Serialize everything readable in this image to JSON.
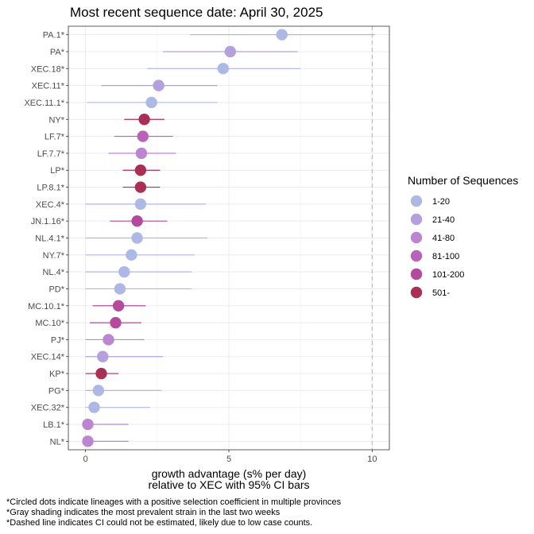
{
  "chart_data": {
    "type": "scatter",
    "title": "Most recent sequence date: April 30, 2025",
    "xlabel_line1": "growth advantage (s% per day)",
    "xlabel_line2": "relative to  XEC  with 95% CI bars",
    "xlim": [
      -0.6,
      10.6
    ],
    "xticks": [
      0,
      5,
      10
    ],
    "grid": true,
    "dashed_reference_x": 10,
    "legend": {
      "title": "Number of Sequences",
      "placement": "right",
      "entries": [
        {
          "label": "1-20",
          "color": "#AEB8E4"
        },
        {
          "label": "21-40",
          "color": "#B3A0DC"
        },
        {
          "label": "41-80",
          "color": "#BB85D2"
        },
        {
          "label": "81-100",
          "color": "#B862B8"
        },
        {
          "label": "101-200",
          "color": "#B34A9B"
        },
        {
          "label": "501-",
          "color": "#AA2F55"
        }
      ]
    },
    "points": [
      {
        "lineage": "PA.1*",
        "estimate": 6.85,
        "lower": 3.65,
        "upper": 10.1,
        "bin": 0
      },
      {
        "lineage": "PA*",
        "estimate": 5.05,
        "lower": 2.7,
        "upper": 7.4,
        "bin": 1
      },
      {
        "lineage": "XEC.18*",
        "estimate": 4.8,
        "lower": 2.15,
        "upper": 7.5,
        "bin": 0
      },
      {
        "lineage": "XEC.11*",
        "estimate": 2.55,
        "lower": 0.55,
        "upper": 4.6,
        "bin": 1
      },
      {
        "lineage": "XEC.11.1*",
        "estimate": 2.3,
        "lower": 0.05,
        "upper": 4.6,
        "bin": 0
      },
      {
        "lineage": "NY*",
        "estimate": 2.05,
        "lower": 1.35,
        "upper": 2.75,
        "bin": 5
      },
      {
        "lineage": "LF.7*",
        "estimate": 2.0,
        "lower": 1.0,
        "upper": 3.05,
        "bin": 3
      },
      {
        "lineage": "LF.7.7*",
        "estimate": 1.95,
        "lower": 0.8,
        "upper": 3.15,
        "bin": 2
      },
      {
        "lineage": "LP*",
        "estimate": 1.92,
        "lower": 1.3,
        "upper": 2.6,
        "bin": 5
      },
      {
        "lineage": "LP.8.1*",
        "estimate": 1.92,
        "lower": 1.3,
        "upper": 2.6,
        "bin": 5
      },
      {
        "lineage": "XEC.4*",
        "estimate": 1.92,
        "lower": 0.0,
        "upper": 4.2,
        "bin": 0
      },
      {
        "lineage": "JN.1.16*",
        "estimate": 1.8,
        "lower": 0.85,
        "upper": 2.85,
        "bin": 4
      },
      {
        "lineage": "NL.4.1*",
        "estimate": 1.8,
        "lower": 0.0,
        "upper": 4.25,
        "bin": 0
      },
      {
        "lineage": "NY.7*",
        "estimate": 1.6,
        "lower": 0.0,
        "upper": 3.8,
        "bin": 0
      },
      {
        "lineage": "NL.4*",
        "estimate": 1.35,
        "lower": 0.0,
        "upper": 3.7,
        "bin": 0
      },
      {
        "lineage": "PD*",
        "estimate": 1.2,
        "lower": 0.0,
        "upper": 3.7,
        "bin": 0
      },
      {
        "lineage": "MC.10.1*",
        "estimate": 1.15,
        "lower": 0.25,
        "upper": 2.1,
        "bin": 4
      },
      {
        "lineage": "MC.10*",
        "estimate": 1.05,
        "lower": 0.15,
        "upper": 1.95,
        "bin": 4
      },
      {
        "lineage": "PJ*",
        "estimate": 0.8,
        "lower": 0.0,
        "upper": 2.05,
        "bin": 2
      },
      {
        "lineage": "XEC.14*",
        "estimate": 0.6,
        "lower": 0.0,
        "upper": 2.7,
        "bin": 1
      },
      {
        "lineage": "KP*",
        "estimate": 0.55,
        "lower": 0.0,
        "upper": 1.15,
        "bin": 5
      },
      {
        "lineage": "PG*",
        "estimate": 0.45,
        "lower": 0.0,
        "upper": 2.65,
        "bin": 0
      },
      {
        "lineage": "XEC.32*",
        "estimate": 0.3,
        "lower": 0.0,
        "upper": 2.25,
        "bin": 0
      },
      {
        "lineage": "LB.1*",
        "estimate": 0.08,
        "lower": 0.0,
        "upper": 1.5,
        "bin": 2
      },
      {
        "lineage": "NL*",
        "estimate": 0.08,
        "lower": 0.0,
        "upper": 1.5,
        "bin": 2
      }
    ]
  },
  "notes": [
    "*Circled dots indicate lineages with a positive selection coefficient in multiple provinces",
    "*Gray shading indicates the most prevalent strain in the last two weeks",
    "*Dashed line indicates CI could not be estimated, likely due to low case counts."
  ]
}
